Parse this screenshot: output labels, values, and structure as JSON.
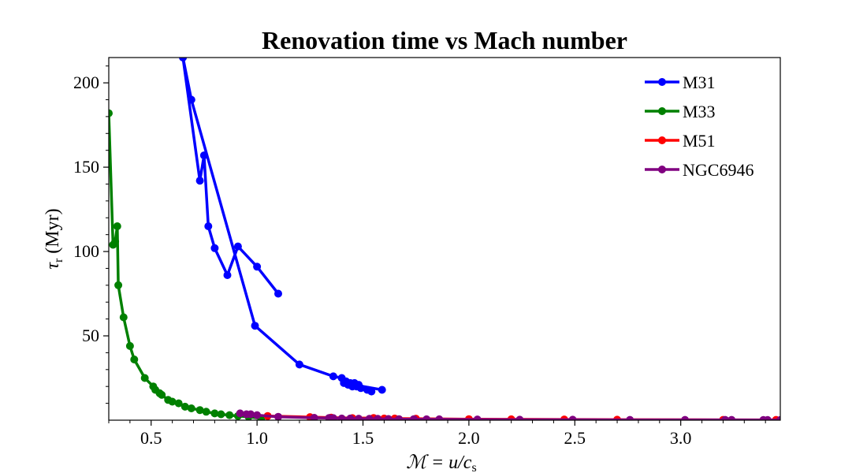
{
  "chart_data": {
    "type": "line",
    "title": "Renovation time vs Mach number",
    "xlabel": "ℳ = u/c",
    "xlabel_sub": "s",
    "ylabel": "τ",
    "ylabel_sub": "r",
    "ylabel_unit": " (Myr)",
    "xlim": [
      0.3,
      3.47
    ],
    "ylim": [
      0,
      215
    ],
    "x_ticks": [
      0.5,
      1.0,
      1.5,
      2.0,
      2.5,
      3.0
    ],
    "x_tick_labels": [
      "0.5",
      "1.0",
      "1.5",
      "2.0",
      "2.5",
      "3.0"
    ],
    "y_ticks": [
      50,
      100,
      150,
      200
    ],
    "y_tick_labels": [
      "50",
      "100",
      "150",
      "200"
    ],
    "legend_position": "top-right",
    "grid": false,
    "series": [
      {
        "name": "M31",
        "color": "#0000ff",
        "x": [
          1.1,
          1.0,
          0.91,
          0.86,
          0.8,
          0.77,
          0.75,
          0.73,
          0.65,
          0.69,
          0.99,
          1.2,
          1.36,
          1.4,
          1.42,
          1.44,
          1.46,
          1.48,
          1.54,
          1.52,
          1.49,
          1.47,
          1.45,
          1.43,
          1.41,
          1.59
        ],
        "y": [
          75,
          91,
          103,
          86,
          102,
          115,
          157,
          142,
          215,
          190,
          56,
          33,
          26,
          25,
          23,
          22,
          22,
          21,
          17,
          18,
          19,
          20,
          20,
          21,
          22,
          18
        ]
      },
      {
        "name": "M33",
        "color": "#008000",
        "x": [
          0.3,
          0.32,
          0.33,
          0.34,
          0.345,
          0.37,
          0.4,
          0.42,
          0.47,
          0.51,
          0.52,
          0.54,
          0.55,
          0.58,
          0.6,
          0.63,
          0.66,
          0.69,
          0.73,
          0.76,
          0.8,
          0.83,
          0.87,
          0.91,
          0.96,
          1.02
        ],
        "y": [
          182,
          104,
          106,
          115,
          80,
          61,
          44,
          36,
          25,
          20,
          18,
          16,
          15,
          12,
          11,
          10,
          8,
          7,
          6,
          5,
          4,
          3.5,
          3,
          2.5,
          2,
          1
        ]
      },
      {
        "name": "M51",
        "color": "#ff0000",
        "x": [
          1.05,
          1.25,
          1.35,
          1.45,
          1.55,
          1.6,
          1.65,
          1.75,
          2.0,
          2.2,
          2.45,
          2.7,
          3.2,
          3.45
        ],
        "y": [
          2.5,
          1.8,
          1.5,
          1.2,
          1.3,
          1.0,
          1.0,
          0.9,
          0.6,
          0.5,
          0.4,
          0.3,
          0.2,
          0.2
        ]
      },
      {
        "name": "NGC6946",
        "color": "#800080",
        "x": [
          0.92,
          0.95,
          0.97,
          1.0,
          1.1,
          1.27,
          1.34,
          1.36,
          1.4,
          1.44,
          1.48,
          1.53,
          1.57,
          1.62,
          1.67,
          1.74,
          1.8,
          1.86,
          2.04,
          2.24,
          2.49,
          2.76,
          3.02,
          3.21,
          3.24,
          3.39,
          3.41,
          3.47
        ],
        "y": [
          4,
          3.5,
          3.5,
          3,
          2,
          1.4,
          1.3,
          1.2,
          1.0,
          1.0,
          0.9,
          0.8,
          0.8,
          0.7,
          0.6,
          0.6,
          0.5,
          0.5,
          0.4,
          0.3,
          0.3,
          0.2,
          0.2,
          0.2,
          0.2,
          0.1,
          0.1,
          0.1
        ]
      }
    ]
  }
}
